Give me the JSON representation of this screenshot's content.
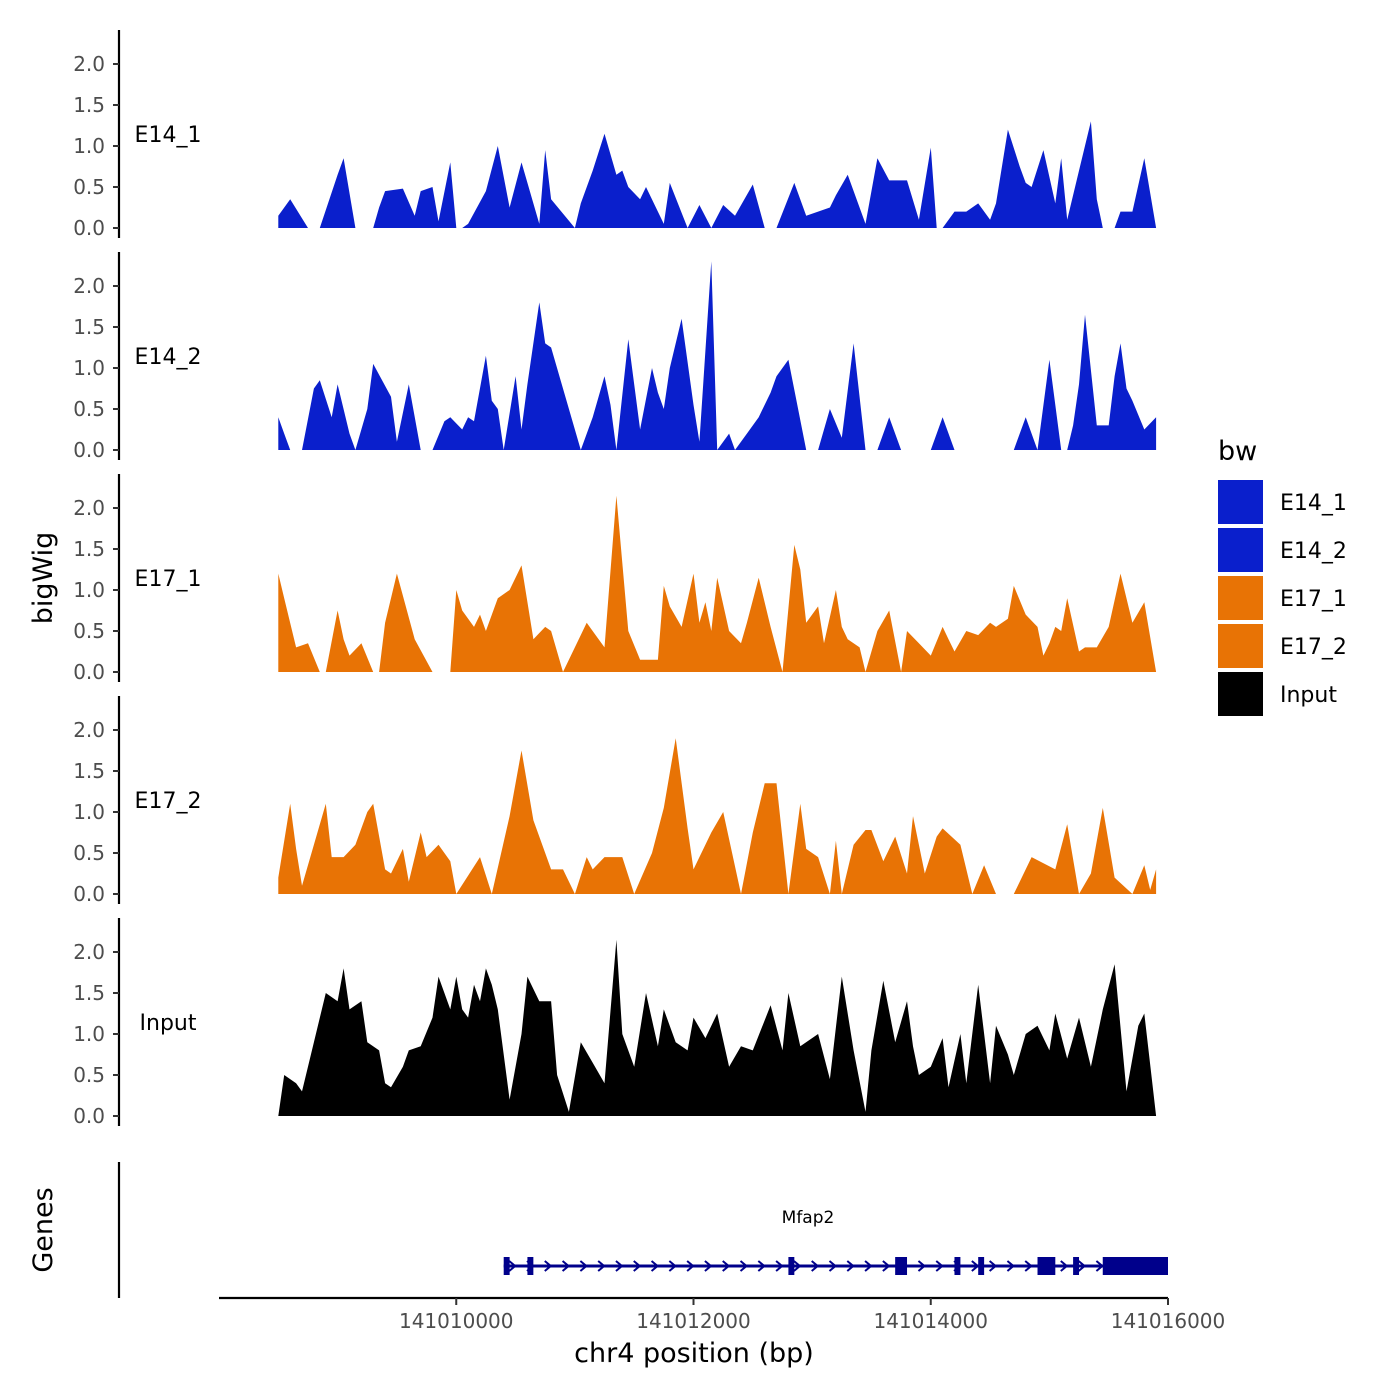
{
  "chart_data": {
    "type": "area",
    "title": "",
    "ylabel": "bigWig",
    "xlabel": "chr4 position (bp)",
    "genes_label": "Genes",
    "ylim": [
      0,
      2.4
    ],
    "xlim": [
      141008000,
      141016000
    ],
    "y_ticks": [
      "0.0",
      "0.5",
      "1.0",
      "1.5",
      "2.0"
    ],
    "x_ticks": [
      {
        "value": 141010000,
        "label": "141010000"
      },
      {
        "value": 141012000,
        "label": "141012000"
      },
      {
        "value": 141014000,
        "label": "141014000"
      },
      {
        "value": 141016000,
        "label": "141016000"
      }
    ],
    "legend": {
      "title": "bw",
      "position": "right",
      "entries": [
        {
          "name": "E14_1",
          "color": "#0A1FCC"
        },
        {
          "name": "E14_2",
          "color": "#0A1FCC"
        },
        {
          "name": "E17_1",
          "color": "#E87305"
        },
        {
          "name": "E17_2",
          "color": "#E87305"
        },
        {
          "name": "Input",
          "color": "#000000"
        }
      ]
    },
    "series": [
      {
        "name": "E14_1",
        "color": "#0A1FCC",
        "x": [
          141008500,
          141008600,
          141008750,
          141008850,
          141009000,
          141009050,
          141009150,
          141009300,
          141009350,
          141009400,
          141009550,
          141009650,
          141009700,
          141009800,
          141009850,
          141009950,
          141010000,
          141010050,
          141010100,
          141010250,
          141010350,
          141010450,
          141010550,
          141010700,
          141010750,
          141010800,
          141011000,
          141011050,
          141011150,
          141011250,
          141011350,
          141011400,
          141011450,
          141011550,
          141011600,
          141011750,
          141011800,
          141011950,
          141012050,
          141012150,
          141012250,
          141012350,
          141012500,
          141012600,
          141012700,
          141012850,
          141012950,
          141013050,
          141013150,
          141013200,
          141013300,
          141013450,
          141013550,
          141013650,
          141013800,
          141013900,
          141014000,
          141014050,
          141014100,
          141014200,
          141014300,
          141014400,
          141014500,
          141014550,
          141014650,
          141014750,
          141014800,
          141014850,
          141014950,
          141015050,
          141015100,
          141015150,
          141015250,
          141015350,
          141015400,
          141015450,
          141015550,
          141015600,
          141015700,
          141015800,
          141015900
        ],
        "y": [
          0.15,
          0.35,
          0.0,
          0.0,
          0.65,
          0.85,
          0.0,
          0.0,
          0.25,
          0.45,
          0.48,
          0.15,
          0.45,
          0.5,
          0.08,
          0.8,
          0.0,
          0.0,
          0.05,
          0.45,
          1.0,
          0.25,
          0.8,
          0.05,
          0.95,
          0.35,
          0.0,
          0.3,
          0.7,
          1.15,
          0.65,
          0.7,
          0.5,
          0.35,
          0.5,
          0.05,
          0.55,
          0.0,
          0.28,
          0.0,
          0.28,
          0.15,
          0.53,
          0.0,
          0.0,
          0.55,
          0.15,
          0.2,
          0.25,
          0.4,
          0.65,
          0.05,
          0.85,
          0.58,
          0.58,
          0.1,
          0.98,
          0.0,
          0.0,
          0.2,
          0.2,
          0.3,
          0.1,
          0.3,
          1.2,
          0.75,
          0.55,
          0.5,
          0.95,
          0.3,
          0.85,
          0.1,
          0.7,
          1.3,
          0.35,
          0.0,
          0.0,
          0.2,
          0.2,
          0.85,
          0.0
        ]
      },
      {
        "name": "E14_2",
        "color": "#0A1FCC",
        "x": [
          141008500,
          141008550,
          141008600,
          141008700,
          141008800,
          141008850,
          141008950,
          141009000,
          141009100,
          141009150,
          141009250,
          141009300,
          141009450,
          141009500,
          141009600,
          141009700,
          141009800,
          141009900,
          141009950,
          141010050,
          141010100,
          141010150,
          141010250,
          141010300,
          141010350,
          141010400,
          141010500,
          141010550,
          141010600,
          141010700,
          141010750,
          141010800,
          141011050,
          141011150,
          141011250,
          141011300,
          141011350,
          141011450,
          141011550,
          141011650,
          141011700,
          141011750,
          141011800,
          141011900,
          141012000,
          141012050,
          141012150,
          141012200,
          141012300,
          141012350,
          141012450,
          141012550,
          141012650,
          141012700,
          141012800,
          141012950,
          141013050,
          141013150,
          141013250,
          141013350,
          141013450,
          141013550,
          141013650,
          141013750,
          141014000,
          141014100,
          141014200,
          141014350,
          141014450,
          141014700,
          141014800,
          141014900,
          141015000,
          141015100,
          141015150,
          141015200,
          141015250,
          141015300,
          141015400,
          141015500,
          141015550,
          141015600,
          141015650,
          141015700,
          141015800,
          141015900
        ],
        "y": [
          0.4,
          0.2,
          0.0,
          0.0,
          0.75,
          0.85,
          0.4,
          0.8,
          0.2,
          0.0,
          0.5,
          1.05,
          0.65,
          0.1,
          0.8,
          0.0,
          0.0,
          0.35,
          0.4,
          0.25,
          0.4,
          0.35,
          1.15,
          0.6,
          0.5,
          0.0,
          0.9,
          0.25,
          0.8,
          1.8,
          1.3,
          1.25,
          0.0,
          0.4,
          0.9,
          0.55,
          0.0,
          1.35,
          0.25,
          1.0,
          0.7,
          0.5,
          1.0,
          1.6,
          0.55,
          0.1,
          2.3,
          0.0,
          0.2,
          0.0,
          0.2,
          0.4,
          0.7,
          0.9,
          1.1,
          0.0,
          0.0,
          0.5,
          0.15,
          1.3,
          0.0,
          0.0,
          0.4,
          0.0,
          0.0,
          0.4,
          0.0,
          0.0,
          0.0,
          0.0,
          0.4,
          0.0,
          1.1,
          0.0,
          0.0,
          0.3,
          0.8,
          1.65,
          0.3,
          0.3,
          0.9,
          1.3,
          0.75,
          0.6,
          0.25,
          0.4
        ]
      },
      {
        "name": "E17_1",
        "color": "#E87305",
        "x": [
          141008500,
          141008550,
          141008650,
          141008750,
          141008850,
          141008900,
          141009000,
          141009050,
          141009100,
          141009200,
          141009300,
          141009350,
          141009400,
          141009500,
          141009650,
          141009800,
          141009850,
          141009950,
          141010000,
          141010050,
          141010150,
          141010200,
          141010250,
          141010350,
          141010450,
          141010550,
          141010650,
          141010750,
          141010800,
          141010900,
          141011100,
          141011250,
          141011350,
          141011450,
          141011550,
          141011700,
          141011750,
          141011800,
          141011900,
          141012000,
          141012050,
          141012100,
          141012150,
          141012200,
          141012300,
          141012400,
          141012450,
          141012550,
          141012650,
          141012750,
          141012850,
          141012900,
          141012950,
          141013050,
          141013100,
          141013200,
          141013250,
          141013300,
          141013400,
          141013450,
          141013550,
          141013650,
          141013750,
          141013800,
          141013900,
          141014000,
          141014100,
          141014150,
          141014200,
          141014300,
          141014400,
          141014500,
          141014550,
          141014650,
          141014700,
          141014800,
          141014900,
          141014950,
          141015000,
          141015050,
          141015100,
          141015150,
          141015250,
          141015300,
          141015400,
          141015500,
          141015600,
          141015700,
          141015800,
          141015900
        ],
        "y": [
          1.2,
          0.9,
          0.3,
          0.35,
          0.0,
          0.0,
          0.75,
          0.4,
          0.2,
          0.35,
          0.0,
          0.0,
          0.6,
          1.2,
          0.4,
          0.0,
          0.0,
          0.0,
          1.0,
          0.75,
          0.55,
          0.7,
          0.5,
          0.9,
          1.0,
          1.3,
          0.4,
          0.55,
          0.5,
          0.0,
          0.6,
          0.3,
          2.15,
          0.5,
          0.15,
          0.15,
          1.05,
          0.8,
          0.55,
          1.2,
          0.6,
          0.85,
          0.5,
          1.15,
          0.5,
          0.35,
          0.6,
          1.15,
          0.55,
          0.0,
          1.55,
          1.25,
          0.6,
          0.8,
          0.35,
          1.0,
          0.55,
          0.4,
          0.3,
          0.0,
          0.5,
          0.75,
          0.0,
          0.5,
          0.35,
          0.2,
          0.55,
          0.4,
          0.25,
          0.5,
          0.45,
          0.6,
          0.55,
          0.65,
          1.05,
          0.7,
          0.55,
          0.2,
          0.35,
          0.55,
          0.5,
          0.9,
          0.25,
          0.3,
          0.3,
          0.55,
          1.2,
          0.6,
          0.85,
          0.0
        ]
      },
      {
        "name": "E17_2",
        "color": "#E87305",
        "x": [
          141008500,
          141008600,
          141008650,
          141008700,
          141008800,
          141008900,
          141008950,
          141009050,
          141009150,
          141009250,
          141009300,
          141009400,
          141009450,
          141009550,
          141009600,
          141009700,
          141009750,
          141009850,
          141009950,
          141010000,
          141010200,
          141010300,
          141010450,
          141010550,
          141010650,
          141010800,
          141010900,
          141011000,
          141011100,
          141011150,
          141011250,
          141011400,
          141011500,
          141011650,
          141011750,
          141011850,
          141011950,
          141012000,
          141012150,
          141012250,
          141012400,
          141012500,
          141012600,
          141012700,
          141012800,
          141012900,
          141012950,
          141013050,
          141013150,
          141013200,
          141013250,
          141013350,
          141013450,
          141013500,
          141013600,
          141013700,
          141013800,
          141013850,
          141013950,
          141014050,
          141014100,
          141014250,
          141014350,
          141014450,
          141014550,
          141014700,
          141014850,
          141015050,
          141015150,
          141015250,
          141015350,
          141015450,
          141015550,
          141015700,
          141015800,
          141015850,
          141015900
        ],
        "y": [
          0.2,
          1.1,
          0.55,
          0.1,
          0.6,
          1.1,
          0.45,
          0.45,
          0.6,
          1.0,
          1.1,
          0.3,
          0.25,
          0.55,
          0.15,
          0.75,
          0.45,
          0.6,
          0.4,
          0.0,
          0.45,
          0.0,
          0.95,
          1.75,
          0.9,
          0.3,
          0.3,
          0.0,
          0.45,
          0.3,
          0.45,
          0.45,
          0.0,
          0.5,
          1.05,
          1.9,
          0.8,
          0.3,
          0.75,
          1.0,
          0.0,
          0.75,
          1.35,
          1.35,
          0.0,
          1.1,
          0.55,
          0.45,
          0.0,
          0.65,
          0.0,
          0.6,
          0.78,
          0.78,
          0.4,
          0.7,
          0.25,
          0.95,
          0.25,
          0.7,
          0.8,
          0.6,
          0.0,
          0.35,
          0.0,
          0.0,
          0.45,
          0.3,
          0.85,
          0.0,
          0.25,
          1.05,
          0.2,
          0.0,
          0.35,
          0.05,
          0.3
        ]
      },
      {
        "name": "Input",
        "color": "#000000",
        "x": [
          141008500,
          141008550,
          141008650,
          141008700,
          141008800,
          141008900,
          141009000,
          141009050,
          141009100,
          141009200,
          141009250,
          141009350,
          141009400,
          141009450,
          141009550,
          141009600,
          141009700,
          141009800,
          141009850,
          141009950,
          141010000,
          141010050,
          141010100,
          141010150,
          141010200,
          141010250,
          141010300,
          141010350,
          141010450,
          141010550,
          141010600,
          141010700,
          141010800,
          141010850,
          141010950,
          141011050,
          141011150,
          141011250,
          141011350,
          141011400,
          141011500,
          141011600,
          141011700,
          141011750,
          141011850,
          141011950,
          141012000,
          141012100,
          141012200,
          141012300,
          141012400,
          141012500,
          141012650,
          141012750,
          141012800,
          141012900,
          141013050,
          141013150,
          141013250,
          141013350,
          141013450,
          141013500,
          141013600,
          141013700,
          141013800,
          141013850,
          141013900,
          141014000,
          141014100,
          141014150,
          141014250,
          141014300,
          141014400,
          141014500,
          141014550,
          141014650,
          141014700,
          141014800,
          141014900,
          141015000,
          141015050,
          141015150,
          141015250,
          141015350,
          141015450,
          141015550,
          141015650,
          141015750,
          141015800,
          141015900
        ],
        "y": [
          0.0,
          0.5,
          0.4,
          0.3,
          0.9,
          1.5,
          1.4,
          1.8,
          1.3,
          1.4,
          0.9,
          0.8,
          0.4,
          0.35,
          0.6,
          0.8,
          0.85,
          1.2,
          1.7,
          1.3,
          1.7,
          1.3,
          1.2,
          1.6,
          1.4,
          1.8,
          1.6,
          1.3,
          0.2,
          1.0,
          1.7,
          1.4,
          1.4,
          0.5,
          0.05,
          0.9,
          0.65,
          0.4,
          2.15,
          1.0,
          0.6,
          1.5,
          0.85,
          1.3,
          0.9,
          0.8,
          1.2,
          0.95,
          1.25,
          0.6,
          0.85,
          0.8,
          1.35,
          0.8,
          1.5,
          0.85,
          1.0,
          0.45,
          1.7,
          0.8,
          0.05,
          0.8,
          1.65,
          0.9,
          1.4,
          0.85,
          0.5,
          0.6,
          0.95,
          0.35,
          1.0,
          0.4,
          1.6,
          0.4,
          1.1,
          0.75,
          0.5,
          1.0,
          1.1,
          0.8,
          1.25,
          0.7,
          1.2,
          0.6,
          1.3,
          1.85,
          0.3,
          1.1,
          1.25,
          0.0
        ]
      }
    ],
    "gene": {
      "name": "Mfap2",
      "color": "#00008B",
      "start": 141010400,
      "end": 141016000,
      "strand": "+",
      "exons": [
        [
          141010400,
          141010450
        ],
        [
          141010600,
          141010650
        ],
        [
          141012800,
          141012850
        ],
        [
          141013700,
          141013800
        ],
        [
          141014200,
          141014250
        ],
        [
          141014400,
          141014450
        ],
        [
          141014900,
          141015050
        ],
        [
          141015200,
          141015250
        ],
        [
          141015450,
          141016000
        ]
      ]
    }
  }
}
